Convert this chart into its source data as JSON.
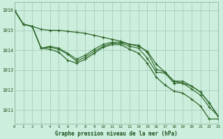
{
  "bg_color": "#cceedd",
  "grid_color": "#aaccbb",
  "line_color": "#2d6628",
  "xlabel": "Graphe pression niveau de la mer (hPa)",
  "xlabel_color": "#1a501a",
  "ylabel_ticks": [
    1011,
    1012,
    1013,
    1014,
    1015,
    1016
  ],
  "xticks": [
    0,
    1,
    2,
    3,
    4,
    5,
    6,
    7,
    8,
    9,
    10,
    11,
    12,
    13,
    14,
    15,
    16,
    17,
    18,
    19,
    20,
    21,
    22,
    23
  ],
  "ylim": [
    1010.3,
    1016.4
  ],
  "xlim": [
    0,
    23
  ],
  "series_top": [
    1016.0,
    1015.3,
    1015.2,
    1015.05,
    1015.0,
    1015.0,
    1014.95,
    1014.9,
    1014.85,
    1014.75,
    1014.65,
    1014.55,
    1014.45,
    1014.3,
    1014.2,
    1013.95,
    1013.3,
    1012.9,
    1012.45,
    1012.35,
    1012.2,
    1011.9,
    1011.35,
    1010.7
  ],
  "series_mid1": [
    1016.0,
    1015.3,
    1015.2,
    1014.1,
    1014.2,
    1014.1,
    1013.85,
    1013.55,
    1013.75,
    1014.05,
    1014.3,
    1014.4,
    1014.4,
    1014.3,
    1014.25,
    1013.9,
    1013.05,
    1012.9,
    1012.45,
    1012.45,
    1012.2,
    1011.9,
    1011.35,
    1010.7
  ],
  "series_mid2": [
    1016.0,
    1015.3,
    1015.2,
    1014.1,
    1014.15,
    1014.05,
    1013.8,
    1013.45,
    1013.65,
    1013.95,
    1014.2,
    1014.35,
    1014.35,
    1014.2,
    1014.1,
    1013.6,
    1012.9,
    1012.85,
    1012.35,
    1012.35,
    1012.05,
    1011.75,
    1011.15,
    1010.7
  ],
  "series_bot": [
    1016.0,
    1015.3,
    1015.2,
    1014.1,
    1014.05,
    1013.9,
    1013.5,
    1013.35,
    1013.55,
    1013.85,
    1014.15,
    1014.28,
    1014.28,
    1014.05,
    1013.85,
    1013.35,
    1012.65,
    1012.25,
    1011.95,
    1011.85,
    1011.55,
    1011.2,
    1010.55,
    1010.55
  ]
}
